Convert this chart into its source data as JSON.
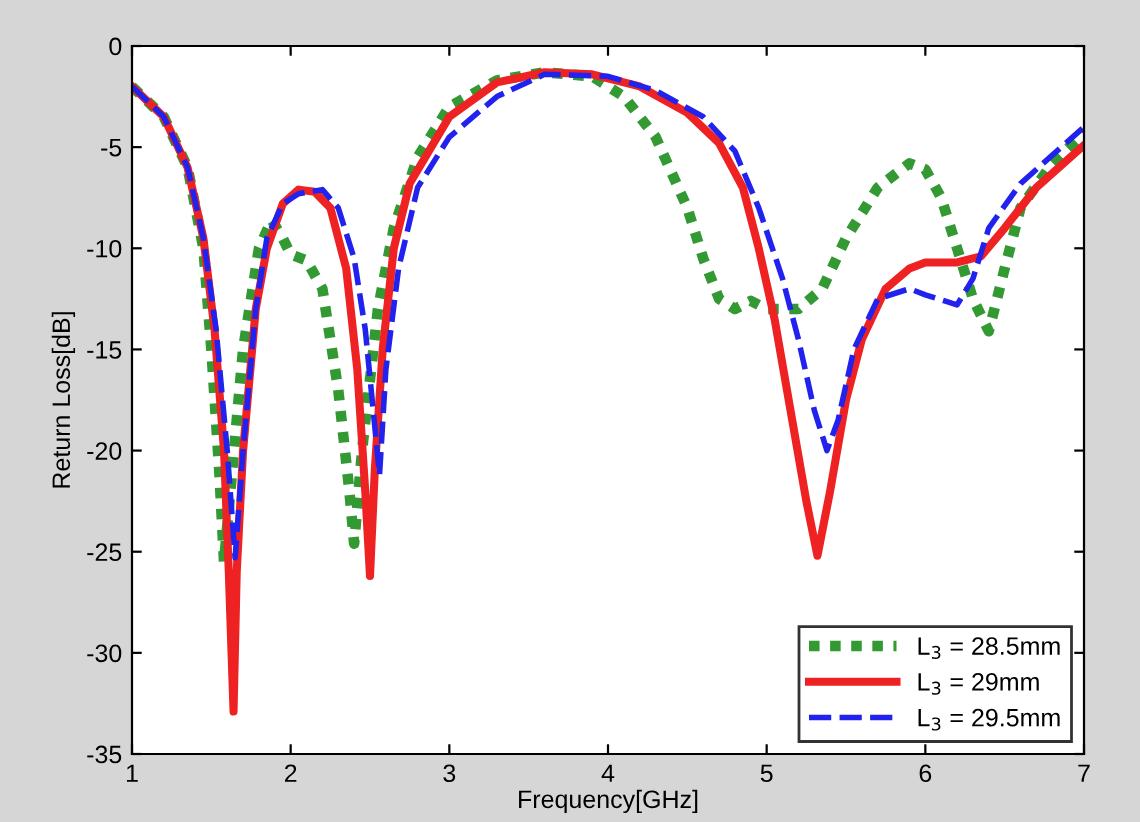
{
  "chart_data": {
    "type": "line",
    "xlabel": "Frequency[GHz]",
    "ylabel": "Return Loss[dB]",
    "xlim": [
      1,
      7
    ],
    "ylim": [
      -35,
      0
    ],
    "xticks": [
      1,
      2,
      3,
      4,
      5,
      6,
      7
    ],
    "yticks": [
      -35,
      -30,
      -25,
      -20,
      -15,
      -10,
      -5,
      0
    ],
    "grid": false,
    "legend": "bottom right",
    "series": [
      {
        "name": "L$_{3}$ = 28.5mm",
        "color": "#339933",
        "line_style": "dotted",
        "x": [
          1,
          1.2,
          1.35,
          1.45,
          1.5,
          1.55,
          1.58,
          1.62,
          1.7,
          1.8,
          1.88,
          1.95,
          2.0,
          2.1,
          2.2,
          2.3,
          2.37,
          2.4,
          2.45,
          2.55,
          2.65,
          2.8,
          3.0,
          3.3,
          3.6,
          3.9,
          4.1,
          4.3,
          4.5,
          4.6,
          4.7,
          4.8,
          4.9,
          5.0,
          5.2,
          5.35,
          5.5,
          5.7,
          5.9,
          6.0,
          6.1,
          6.2,
          6.3,
          6.4,
          6.5,
          6.6,
          6.8,
          7.0
        ],
        "values": [
          -2,
          -3.5,
          -6,
          -10,
          -15,
          -21,
          -25.5,
          -22,
          -15,
          -10,
          -8.6,
          -9.5,
          -10.3,
          -10.6,
          -12,
          -17,
          -22,
          -24.6,
          -20,
          -13,
          -9,
          -5.5,
          -3,
          -1.7,
          -1.3,
          -1.5,
          -2.5,
          -4.5,
          -8,
          -10.5,
          -12.5,
          -13,
          -12.6,
          -13,
          -13,
          -12,
          -9.5,
          -7,
          -5.8,
          -6.1,
          -7.5,
          -10,
          -12.5,
          -14.1,
          -11,
          -8,
          -5.8,
          -4.3
        ]
      },
      {
        "name": "L$_{3}$ = 29mm",
        "color": "#ee2222",
        "line_style": "solid",
        "x": [
          1,
          1.2,
          1.35,
          1.45,
          1.52,
          1.58,
          1.61,
          1.64,
          1.66,
          1.7,
          1.78,
          1.85,
          1.95,
          2.05,
          2.15,
          2.25,
          2.35,
          2.42,
          2.47,
          2.5,
          2.53,
          2.58,
          2.65,
          2.75,
          3.0,
          3.3,
          3.6,
          3.9,
          4.2,
          4.5,
          4.7,
          4.85,
          4.95,
          5.05,
          5.15,
          5.25,
          5.32,
          5.4,
          5.5,
          5.6,
          5.75,
          5.9,
          6.0,
          6.2,
          6.35,
          6.5,
          6.7,
          7.0
        ],
        "values": [
          -2,
          -3.5,
          -6,
          -9.5,
          -14,
          -20,
          -26,
          -32.9,
          -26,
          -20,
          -13,
          -10,
          -7.8,
          -7.1,
          -7.2,
          -8,
          -11,
          -16,
          -22,
          -26.2,
          -21,
          -15,
          -10,
          -6.8,
          -3.5,
          -1.8,
          -1.3,
          -1.4,
          -2,
          -3.3,
          -4.8,
          -7,
          -10,
          -13.5,
          -18,
          -22.5,
          -25.2,
          -22,
          -17.5,
          -14.5,
          -12,
          -11,
          -10.7,
          -10.7,
          -10.4,
          -9,
          -7,
          -4.9
        ]
      },
      {
        "name": "L$_{3}$ = 29.5mm",
        "color": "#2222ee",
        "line_style": "dashed",
        "x": [
          1,
          1.2,
          1.35,
          1.45,
          1.53,
          1.6,
          1.65,
          1.7,
          1.78,
          1.85,
          1.95,
          2.05,
          2.2,
          2.3,
          2.4,
          2.47,
          2.52,
          2.56,
          2.6,
          2.68,
          2.8,
          3.0,
          3.3,
          3.6,
          4.0,
          4.3,
          4.6,
          4.8,
          4.95,
          5.1,
          5.2,
          5.3,
          5.38,
          5.45,
          5.55,
          5.7,
          5.9,
          6.0,
          6.2,
          6.3,
          6.4,
          6.6,
          7.0
        ],
        "values": [
          -2,
          -3.5,
          -6,
          -9.5,
          -14,
          -20,
          -25.3,
          -20,
          -13,
          -9.5,
          -7.8,
          -7.3,
          -7.1,
          -8,
          -10.5,
          -14,
          -18,
          -21.2,
          -16,
          -11,
          -7,
          -4.5,
          -2.5,
          -1.4,
          -1.5,
          -2.2,
          -3.5,
          -5.2,
          -8,
          -11.5,
          -14.5,
          -18,
          -20,
          -18.5,
          -15,
          -12.5,
          -12,
          -12.3,
          -12.8,
          -11.5,
          -9,
          -6.8,
          -4
        ]
      }
    ]
  }
}
